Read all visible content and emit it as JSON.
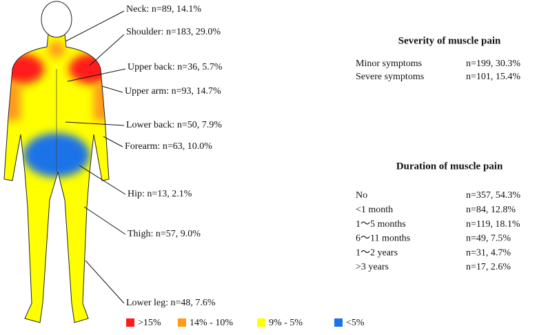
{
  "body_map": {
    "regions": [
      {
        "label": "Neck: n=89, 14.1%"
      },
      {
        "label": "Shoulder: n=183, 29.0%"
      },
      {
        "label": "Upper back: n=36, 5.7%"
      },
      {
        "label": "Upper arm: n=93, 14.7%"
      },
      {
        "label": "Lower back: n=50, 7.9%"
      },
      {
        "label": "Forearm: n=63, 10.0%"
      },
      {
        "label": "Hip: n=13, 2.1%"
      },
      {
        "label": "Thigh: n=57, 9.0%"
      },
      {
        "label": "Lower leg: n=48, 7.6%"
      }
    ]
  },
  "legend": {
    "items": [
      {
        "label": ">15%",
        "color": "#ff1a1a"
      },
      {
        "label": "14% - 10%",
        "color": "#ff9a1a"
      },
      {
        "label": "9% - 5%",
        "color": "#ffff00"
      },
      {
        "label": "<5%",
        "color": "#1a73e8"
      }
    ]
  },
  "severity": {
    "title": "Severity of muscle pain",
    "rows": [
      [
        "Minor symptoms",
        "n=199, 30.3%"
      ],
      [
        "Severe symptoms",
        "n=101, 15.4%"
      ]
    ]
  },
  "duration": {
    "title": "Duration of muscle pain",
    "rows": [
      [
        "No",
        "n=357, 54.3%"
      ],
      [
        "<1 month",
        "n=84, 12.8%"
      ],
      [
        "1～5 months",
        "n=119, 18.1%"
      ],
      [
        "6～11 months",
        "n=49, 7.5%"
      ],
      [
        "1～2 years",
        "n=31, 4.7%"
      ],
      [
        ">3 years",
        "n=17, 2.6%"
      ]
    ]
  }
}
